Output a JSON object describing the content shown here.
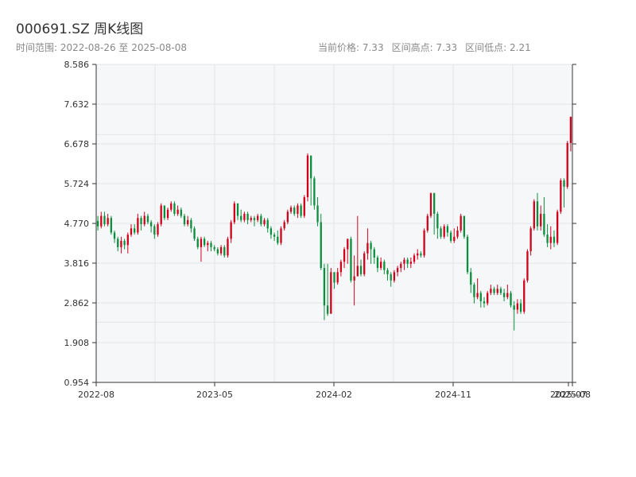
{
  "title": "000691.SZ 周K线图",
  "subtitle": {
    "range_label": "时间范围: 2022-08-26 至 2025-08-08",
    "current_price": "当前价格: 7.33",
    "high": "区间高点: 7.33",
    "low": "区间低点: 2.21"
  },
  "colors": {
    "up": "#d0021b",
    "down": "#0a8f3c",
    "plot_bg": "#f6f7f9",
    "grid": "#e3e6ea",
    "axis": "#333333"
  },
  "chart_data": {
    "type": "candlestick",
    "title": "000691.SZ 周K线图",
    "x_ticks": [
      "2022-08",
      "2023-05",
      "2024-02",
      "2024-11",
      "2025-07",
      "2025-08"
    ],
    "y_ticks": [
      "0.954",
      "1.908",
      "2.862",
      "3.816",
      "4.770",
      "5.724",
      "6.678",
      "7.632",
      "8.586"
    ],
    "ylim": [
      0.954,
      8.586
    ],
    "grid": true,
    "candles": [
      [
        4.83,
        4.7,
        4.95,
        4.6
      ],
      [
        4.7,
        4.95,
        5.05,
        4.65
      ],
      [
        4.95,
        4.75,
        5.05,
        4.7
      ],
      [
        4.75,
        4.9,
        5.0,
        4.7
      ],
      [
        4.9,
        4.55,
        4.95,
        4.5
      ],
      [
        4.55,
        4.4,
        4.6,
        4.3
      ],
      [
        4.4,
        4.2,
        4.45,
        4.1
      ],
      [
        4.2,
        4.35,
        4.45,
        4.05
      ],
      [
        4.35,
        4.25,
        4.4,
        4.15
      ],
      [
        4.25,
        4.5,
        4.55,
        4.05
      ],
      [
        4.5,
        4.65,
        4.75,
        4.45
      ],
      [
        4.65,
        4.55,
        4.75,
        4.5
      ],
      [
        4.55,
        4.9,
        5.0,
        4.5
      ],
      [
        4.9,
        4.75,
        4.95,
        4.6
      ],
      [
        4.75,
        4.95,
        5.05,
        4.7
      ],
      [
        4.95,
        4.8,
        5.0,
        4.75
      ],
      [
        4.8,
        4.7,
        4.85,
        4.55
      ],
      [
        4.7,
        4.5,
        4.75,
        4.4
      ],
      [
        4.5,
        4.75,
        4.8,
        4.45
      ],
      [
        4.75,
        5.2,
        5.25,
        4.7
      ],
      [
        5.2,
        4.9,
        5.2,
        4.85
      ],
      [
        4.9,
        5.1,
        5.15,
        4.85
      ],
      [
        5.1,
        5.25,
        5.3,
        5.05
      ],
      [
        5.25,
        5.0,
        5.3,
        4.95
      ],
      [
        5.0,
        5.1,
        5.2,
        4.95
      ],
      [
        5.1,
        4.95,
        5.15,
        4.9
      ],
      [
        4.95,
        4.75,
        5.0,
        4.7
      ],
      [
        4.75,
        4.85,
        4.95,
        4.7
      ],
      [
        4.85,
        4.65,
        4.9,
        4.55
      ],
      [
        4.65,
        4.4,
        4.7,
        4.35
      ],
      [
        4.4,
        4.2,
        4.45,
        4.15
      ],
      [
        4.2,
        4.4,
        4.45,
        3.85
      ],
      [
        4.4,
        4.25,
        4.45,
        4.2
      ],
      [
        4.25,
        4.3,
        4.35,
        4.1
      ],
      [
        4.3,
        4.2,
        4.35,
        4.1
      ],
      [
        4.2,
        4.15,
        4.25,
        4.1
      ],
      [
        4.15,
        4.05,
        4.2,
        4.0
      ],
      [
        4.05,
        4.2,
        4.25,
        4.0
      ],
      [
        4.2,
        4.0,
        4.25,
        3.95
      ],
      [
        4.0,
        4.4,
        4.45,
        3.95
      ],
      [
        4.4,
        4.8,
        4.85,
        4.3
      ],
      [
        4.8,
        5.25,
        5.3,
        4.75
      ],
      [
        5.25,
        4.95,
        5.25,
        4.85
      ],
      [
        4.95,
        4.85,
        5.1,
        4.8
      ],
      [
        4.85,
        5.0,
        5.05,
        4.8
      ],
      [
        5.0,
        4.85,
        5.05,
        4.75
      ],
      [
        4.85,
        4.9,
        4.95,
        4.8
      ],
      [
        4.9,
        4.85,
        4.95,
        4.7
      ],
      [
        4.85,
        4.95,
        5.0,
        4.8
      ],
      [
        4.95,
        4.75,
        5.0,
        4.7
      ],
      [
        4.75,
        4.85,
        4.9,
        4.7
      ],
      [
        4.85,
        4.65,
        4.9,
        4.55
      ],
      [
        4.65,
        4.5,
        4.7,
        4.4
      ],
      [
        4.5,
        4.45,
        4.55,
        4.35
      ],
      [
        4.45,
        4.3,
        4.6,
        4.25
      ],
      [
        4.3,
        4.65,
        4.7,
        4.25
      ],
      [
        4.65,
        4.8,
        4.85,
        4.6
      ],
      [
        4.8,
        5.05,
        5.1,
        4.75
      ],
      [
        5.05,
        5.15,
        5.2,
        5.0
      ],
      [
        5.15,
        5.0,
        5.2,
        4.95
      ],
      [
        5.0,
        5.2,
        5.25,
        4.9
      ],
      [
        5.2,
        4.95,
        5.25,
        4.9
      ],
      [
        4.95,
        5.4,
        5.45,
        4.9
      ],
      [
        5.4,
        6.4,
        6.45,
        5.3
      ],
      [
        6.4,
        5.85,
        5.85,
        5.2
      ],
      [
        5.85,
        5.2,
        5.9,
        5.1
      ],
      [
        5.2,
        4.8,
        5.4,
        4.7
      ],
      [
        4.8,
        3.7,
        5.0,
        3.65
      ],
      [
        3.7,
        2.8,
        3.8,
        2.45
      ],
      [
        2.8,
        2.6,
        3.8,
        2.55
      ],
      [
        2.6,
        3.6,
        3.7,
        3.2
      ],
      [
        3.6,
        3.35,
        3.6,
        3.2
      ],
      [
        3.35,
        3.6,
        3.7,
        3.3
      ],
      [
        3.6,
        3.85,
        3.9,
        3.5
      ],
      [
        3.85,
        4.15,
        4.2,
        3.7
      ],
      [
        4.15,
        4.4,
        4.4,
        3.8
      ],
      [
        4.4,
        3.4,
        4.45,
        3.35
      ],
      [
        3.4,
        3.5,
        4.0,
        2.8
      ],
      [
        3.5,
        3.75,
        4.95,
        3.6
      ],
      [
        3.75,
        3.55,
        3.9,
        3.5
      ],
      [
        3.55,
        4.05,
        4.1,
        3.5
      ],
      [
        4.05,
        4.3,
        4.65,
        3.9
      ],
      [
        4.3,
        4.15,
        4.35,
        3.8
      ],
      [
        4.15,
        3.95,
        4.2,
        3.8
      ],
      [
        3.95,
        3.7,
        4.0,
        3.6
      ],
      [
        3.7,
        3.85,
        3.95,
        3.65
      ],
      [
        3.85,
        3.65,
        3.9,
        3.55
      ],
      [
        3.65,
        3.55,
        3.7,
        3.4
      ],
      [
        3.55,
        3.4,
        3.6,
        3.25
      ],
      [
        3.4,
        3.6,
        3.65,
        3.35
      ],
      [
        3.6,
        3.7,
        3.75,
        3.5
      ],
      [
        3.7,
        3.8,
        3.85,
        3.6
      ],
      [
        3.8,
        3.9,
        3.95,
        3.65
      ],
      [
        3.9,
        3.8,
        3.95,
        3.7
      ],
      [
        3.8,
        3.85,
        3.95,
        3.7
      ],
      [
        3.85,
        4.0,
        4.05,
        3.8
      ],
      [
        4.0,
        4.05,
        4.15,
        3.9
      ],
      [
        4.05,
        4.0,
        4.1,
        3.95
      ],
      [
        4.0,
        4.6,
        4.65,
        3.95
      ],
      [
        4.6,
        4.95,
        5.0,
        4.55
      ],
      [
        4.95,
        5.5,
        5.5,
        4.9
      ],
      [
        5.5,
        5.0,
        5.1,
        4.5
      ],
      [
        5.0,
        4.65,
        5.05,
        4.4
      ],
      [
        4.65,
        4.45,
        4.7,
        4.4
      ],
      [
        4.45,
        4.7,
        4.75,
        4.4
      ],
      [
        4.7,
        4.55,
        4.75,
        4.45
      ],
      [
        4.55,
        4.35,
        4.6,
        4.3
      ],
      [
        4.35,
        4.45,
        4.65,
        4.3
      ],
      [
        4.45,
        4.6,
        4.7,
        4.4
      ],
      [
        4.6,
        4.95,
        5.0,
        4.55
      ],
      [
        4.95,
        4.45,
        4.95,
        4.4
      ],
      [
        4.45,
        3.6,
        4.5,
        3.55
      ],
      [
        3.6,
        3.3,
        3.7,
        3.1
      ],
      [
        3.3,
        3.0,
        3.35,
        2.85
      ],
      [
        3.0,
        3.1,
        3.45,
        2.95
      ],
      [
        3.1,
        2.9,
        3.15,
        2.75
      ],
      [
        2.9,
        2.85,
        3.0,
        2.75
      ],
      [
        2.85,
        3.1,
        3.15,
        2.8
      ],
      [
        3.1,
        3.2,
        3.3,
        3.05
      ],
      [
        3.2,
        3.1,
        3.25,
        3.05
      ],
      [
        3.1,
        3.2,
        3.3,
        3.05
      ],
      [
        3.2,
        3.1,
        3.25,
        3.05
      ],
      [
        3.1,
        3.0,
        3.2,
        2.9
      ],
      [
        3.0,
        3.1,
        3.3,
        2.95
      ],
      [
        3.1,
        2.8,
        3.15,
        2.75
      ],
      [
        2.8,
        2.7,
        2.9,
        2.2
      ],
      [
        2.7,
        2.85,
        2.95,
        2.6
      ],
      [
        2.85,
        2.65,
        2.95,
        2.6
      ],
      [
        2.65,
        3.4,
        3.45,
        2.6
      ],
      [
        3.4,
        4.1,
        4.15,
        3.35
      ],
      [
        4.1,
        4.65,
        4.7,
        4.0
      ],
      [
        4.65,
        5.3,
        5.35,
        4.6
      ],
      [
        5.3,
        4.7,
        5.5,
        4.6
      ],
      [
        4.7,
        5.0,
        5.2,
        4.6
      ],
      [
        5.0,
        4.5,
        5.4,
        4.45
      ],
      [
        4.5,
        4.3,
        4.75,
        4.2
      ],
      [
        4.3,
        4.45,
        4.7,
        4.15
      ],
      [
        4.45,
        4.3,
        4.6,
        4.2
      ],
      [
        4.3,
        5.05,
        5.1,
        4.25
      ],
      [
        5.05,
        5.8,
        5.85,
        5.0
      ],
      [
        5.8,
        5.65,
        5.85,
        5.15
      ],
      [
        5.65,
        6.7,
        6.75,
        5.6
      ],
      [
        6.7,
        7.33,
        7.33,
        6.5
      ]
    ]
  }
}
